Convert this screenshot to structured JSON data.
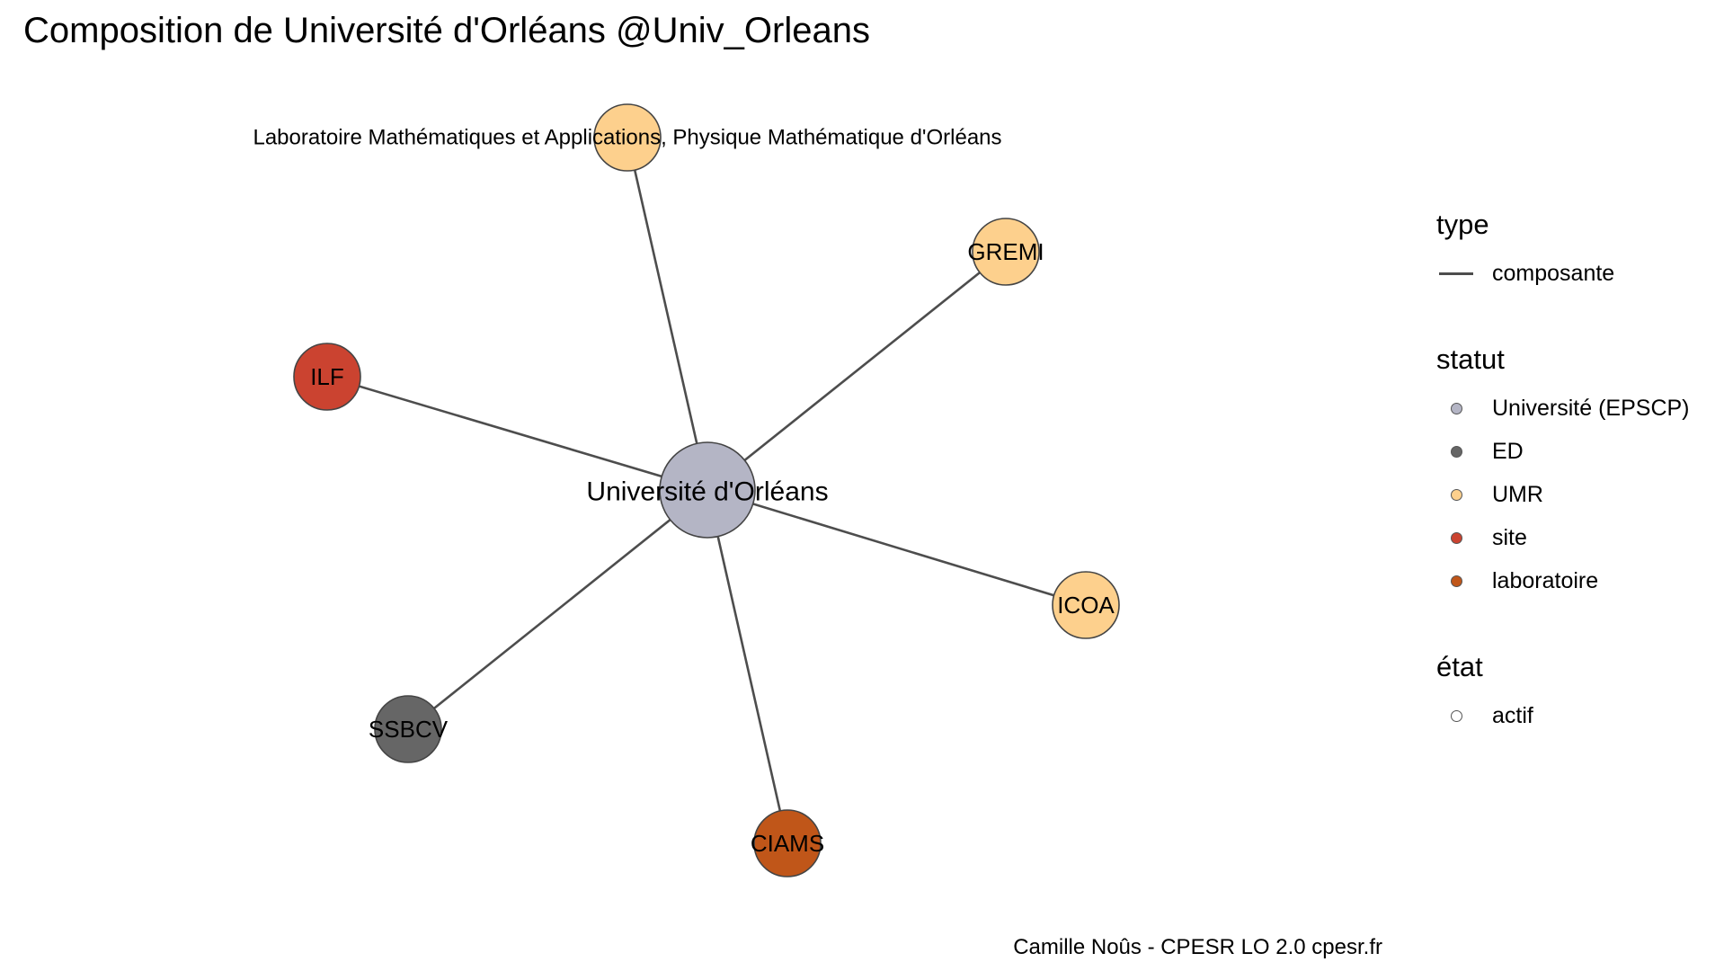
{
  "title": "Composition de Université d'Orléans @Univ_Orleans",
  "caption": "Camille Noûs - CPESR LO 2.0 cpesr.fr",
  "colors": {
    "edge": "#4d4d4d",
    "node_border": "#444444",
    "universite": "#b4b5c5",
    "ed": "#666666",
    "umr": "#fdd08d",
    "site": "#cb4330",
    "laboratoire": "#c05619",
    "actif": "#ffffff"
  },
  "graph": {
    "center": {
      "label": "Université d'Orléans",
      "statut": "Université (EPSCP)"
    },
    "nodes": [
      {
        "id": "lmapmo",
        "label": "Laboratoire Mathématiques et Applications, Physique Mathématique d'Orléans",
        "statut": "UMR"
      },
      {
        "id": "gremi",
        "label": "GREMI",
        "statut": "UMR"
      },
      {
        "id": "ilf",
        "label": "ILF",
        "statut": "site"
      },
      {
        "id": "icoa",
        "label": "ICOA",
        "statut": "UMR"
      },
      {
        "id": "ssbcv",
        "label": "SSBCV",
        "statut": "ED"
      },
      {
        "id": "ciams",
        "label": "CIAMS",
        "statut": "laboratoire"
      }
    ],
    "edges": [
      {
        "from": "center",
        "to": "lmapmo",
        "type": "composante"
      },
      {
        "from": "center",
        "to": "gremi",
        "type": "composante"
      },
      {
        "from": "center",
        "to": "ilf",
        "type": "composante"
      },
      {
        "from": "center",
        "to": "icoa",
        "type": "composante"
      },
      {
        "from": "center",
        "to": "ssbcv",
        "type": "composante"
      },
      {
        "from": "center",
        "to": "ciams",
        "type": "composante"
      }
    ]
  },
  "legend": {
    "type": {
      "title": "type",
      "items": [
        {
          "label": "composante",
          "color": "#4d4d4d"
        }
      ]
    },
    "statut": {
      "title": "statut",
      "items": [
        {
          "label": "Université (EPSCP)",
          "color": "#b4b5c5"
        },
        {
          "label": "ED",
          "color": "#666666"
        },
        {
          "label": "UMR",
          "color": "#fdd08d"
        },
        {
          "label": "site",
          "color": "#cb4330"
        },
        {
          "label": "laboratoire",
          "color": "#c05619"
        }
      ]
    },
    "etat": {
      "title": "état",
      "items": [
        {
          "label": "actif",
          "color": "#ffffff"
        }
      ]
    }
  }
}
